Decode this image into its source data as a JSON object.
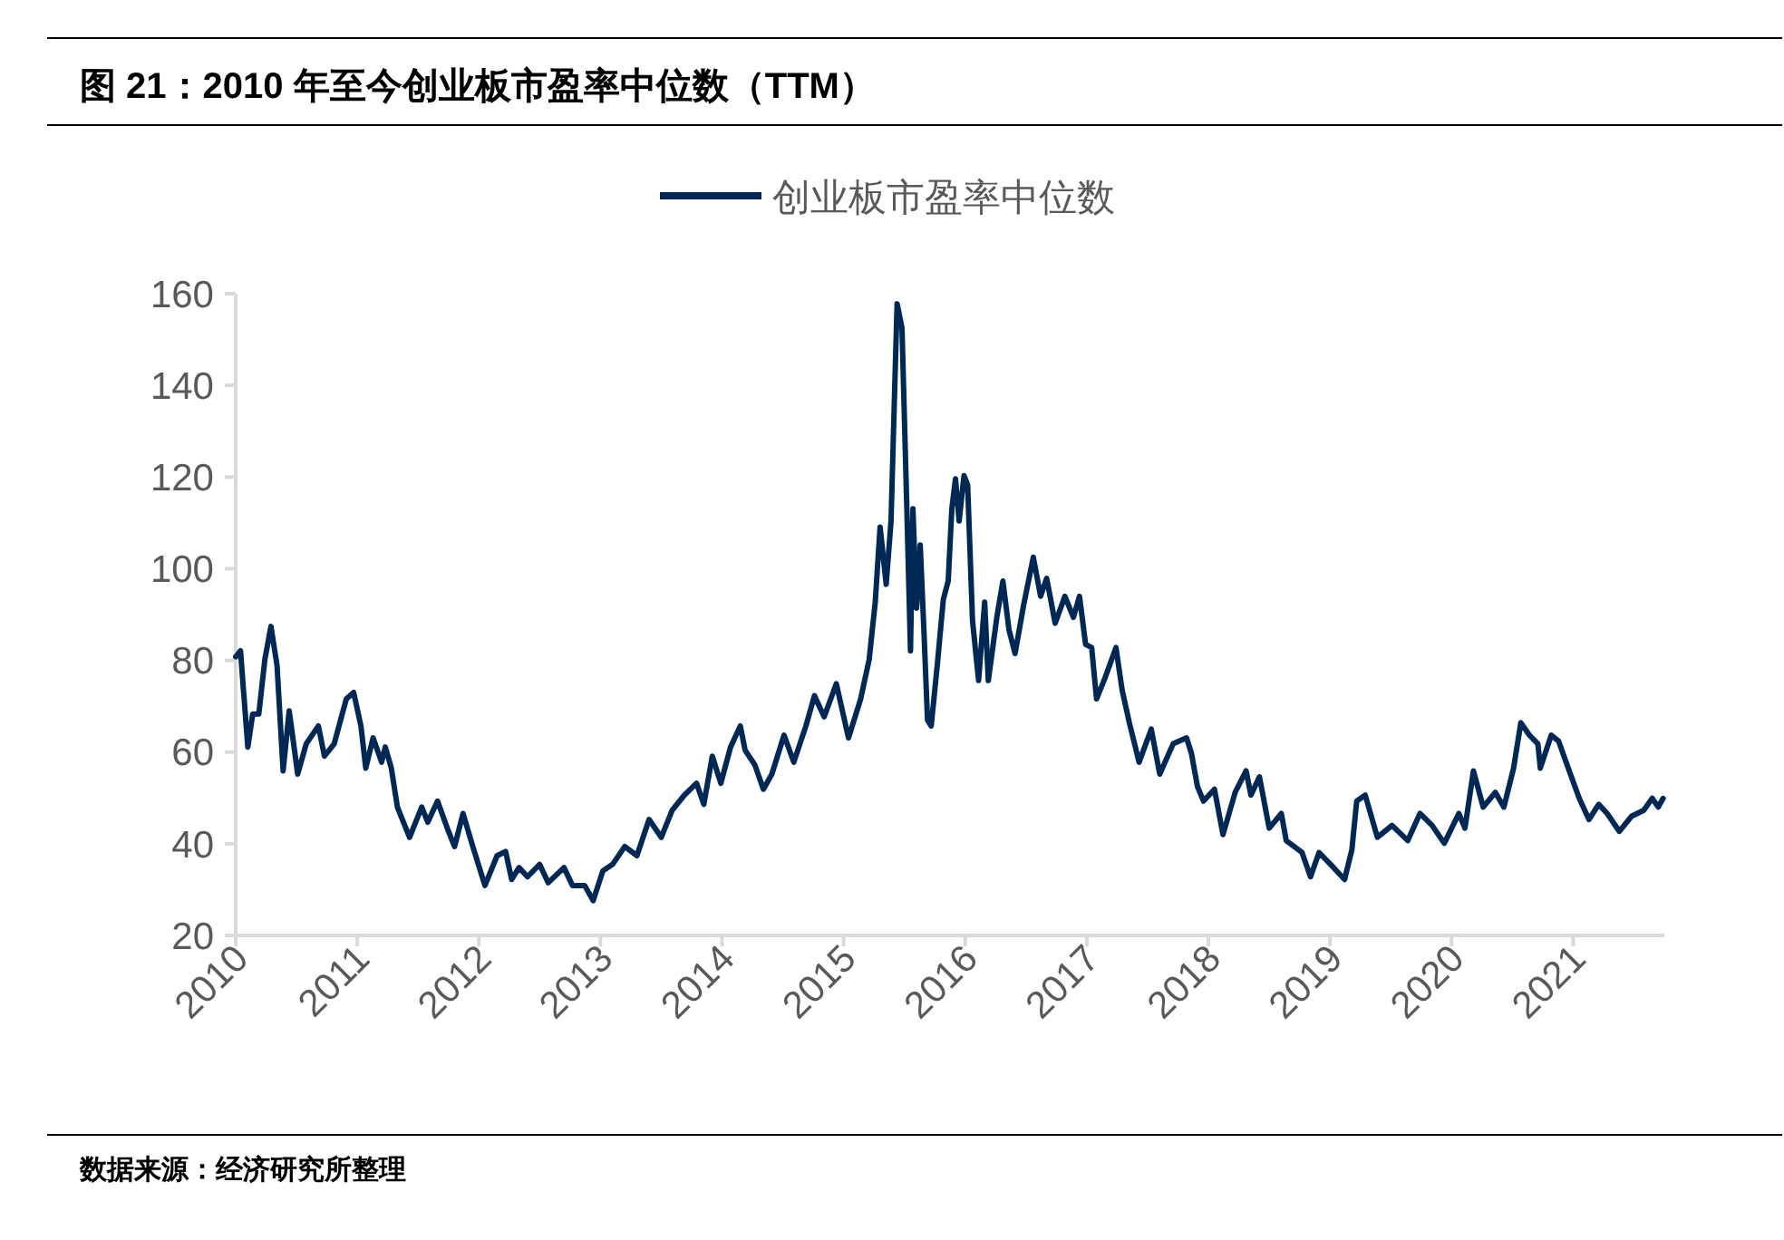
{
  "chart_data": {
    "type": "line",
    "title": "图 21：2010 年至今创业板市盈率中位数（TTM）",
    "annotations": [
      "数据来源：经济研究所整理"
    ],
    "legend": "top",
    "x": [
      2010.0,
      2010.04,
      2010.06,
      2010.1,
      2010.14,
      2010.19,
      2010.24,
      2010.29,
      2010.34,
      2010.39,
      2010.44,
      2010.51,
      2010.58,
      2010.68,
      2010.73,
      2010.81,
      2010.91,
      2010.97,
      2011.03,
      2011.07,
      2011.13,
      2011.2,
      2011.23,
      2011.28,
      2011.33,
      2011.43,
      2011.53,
      2011.58,
      2011.66,
      2011.75,
      2011.8,
      2011.87,
      2011.95,
      2012.05,
      2012.15,
      2012.22,
      2012.27,
      2012.33,
      2012.4,
      2012.5,
      2012.57,
      2012.7,
      2012.77,
      2012.87,
      2012.94,
      2013.02,
      2013.1,
      2013.2,
      2013.3,
      2013.4,
      2013.5,
      2013.59,
      2013.69,
      2013.79,
      2013.85,
      2013.92,
      2013.99,
      2014.07,
      2014.15,
      2014.19,
      2014.27,
      2014.34,
      2014.41,
      2014.51,
      2014.59,
      2014.69,
      2014.76,
      2014.84,
      2014.94,
      2015.04,
      2015.14,
      2015.21,
      2015.26,
      2015.3,
      2015.35,
      2015.39,
      2015.42,
      2015.44,
      2015.48,
      2015.52,
      2015.55,
      2015.57,
      2015.6,
      2015.63,
      2015.66,
      2015.69,
      2015.72,
      2015.77,
      2015.82,
      2015.86,
      2015.89,
      2015.92,
      2015.95,
      2015.99,
      2016.02,
      2016.06,
      2016.11,
      2016.16,
      2016.19,
      2016.26,
      2016.31,
      2016.36,
      2016.41,
      2016.48,
      2016.56,
      2016.62,
      2016.67,
      2016.74,
      2016.82,
      2016.89,
      2016.94,
      2016.99,
      2017.04,
      2017.08,
      2017.15,
      2017.24,
      2017.29,
      2017.35,
      2017.43,
      2017.53,
      2017.6,
      2017.71,
      2017.82,
      2017.86,
      2017.91,
      2017.96,
      2018.05,
      2018.12,
      2018.22,
      2018.31,
      2018.35,
      2018.42,
      2018.5,
      2018.6,
      2018.64,
      2018.77,
      2018.84,
      2018.91,
      2019.03,
      2019.12,
      2019.18,
      2019.22,
      2019.29,
      2019.39,
      2019.51,
      2019.64,
      2019.74,
      2019.84,
      2019.94,
      2020.06,
      2020.11,
      2020.18,
      2020.26,
      2020.36,
      2020.43,
      2020.51,
      2020.57,
      2020.64,
      2020.71,
      2020.73,
      2020.82,
      2020.88,
      2020.96,
      2021.05,
      2021.13,
      2021.21,
      2021.28,
      2021.38,
      2021.48,
      2021.58,
      2021.65,
      2021.7,
      2021.74
    ],
    "series": [
      {
        "name": "创业板市盈率中位数",
        "color": "#002855",
        "values": [
          80.8,
          82.1,
          74.9,
          61.1,
          68.3,
          68.3,
          80.2,
          87.4,
          78.9,
          55.9,
          69.0,
          55.2,
          61.8,
          65.7,
          59.1,
          61.8,
          71.6,
          73.0,
          65.7,
          56.5,
          63.1,
          57.8,
          61.1,
          56.5,
          48.0,
          41.4,
          48.0,
          44.7,
          49.3,
          42.7,
          39.4,
          46.6,
          39.4,
          30.9,
          37.4,
          38.3,
          32.2,
          34.8,
          32.8,
          35.5,
          31.5,
          34.8,
          30.9,
          30.9,
          27.6,
          34.1,
          35.5,
          39.4,
          37.4,
          45.3,
          41.4,
          47.3,
          50.6,
          53.2,
          48.6,
          59.1,
          53.2,
          61.1,
          65.7,
          60.4,
          57.2,
          51.9,
          55.2,
          63.7,
          57.8,
          65.7,
          72.3,
          67.7,
          74.9,
          63.1,
          71.6,
          80.2,
          92.7,
          109.1,
          96.6,
          110.4,
          139.3,
          157.8,
          152.5,
          113.1,
          82.1,
          113.1,
          91.4,
          105.2,
          86.7,
          67.0,
          65.7,
          78.9,
          93.3,
          97.3,
          113.1,
          119.6,
          110.4,
          120.3,
          118.3,
          88.7,
          75.6,
          92.7,
          75.6,
          89.4,
          97.3,
          86.7,
          81.5,
          92.0,
          102.5,
          94.0,
          97.9,
          88.1,
          94.0,
          89.4,
          94.0,
          83.5,
          82.8,
          71.6,
          76.2,
          82.8,
          73.6,
          66.4,
          57.8,
          65.0,
          55.2,
          61.8,
          63.1,
          59.8,
          52.5,
          49.3,
          51.9,
          42.0,
          51.2,
          55.9,
          50.6,
          54.6,
          43.4,
          46.6,
          40.7,
          38.1,
          32.8,
          38.1,
          34.8,
          32.2,
          38.7,
          49.3,
          50.6,
          41.4,
          44.0,
          40.7,
          46.6,
          44.0,
          40.1,
          46.6,
          43.4,
          55.9,
          48.0,
          51.2,
          48.0,
          56.5,
          66.4,
          63.7,
          61.8,
          56.5,
          63.7,
          62.4,
          56.5,
          49.9,
          45.3,
          48.6,
          46.6,
          42.7,
          46.0,
          47.3,
          49.9,
          48.0,
          49.9
        ]
      }
    ],
    "xlim": [
      2010,
      2021.75
    ],
    "xticks": [
      2010,
      2011,
      2012,
      2013,
      2014,
      2015,
      2016,
      2017,
      2018,
      2019,
      2020,
      2021
    ],
    "ylim": [
      20,
      160
    ],
    "yticks": [
      20,
      40,
      60,
      80,
      100,
      120,
      140,
      160
    ],
    "line_style": "solid"
  }
}
